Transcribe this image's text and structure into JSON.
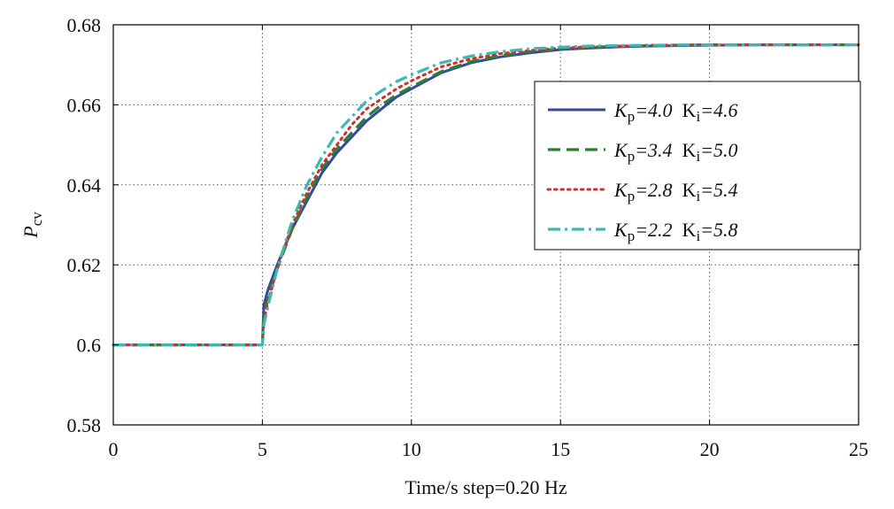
{
  "chart_data": {
    "type": "line",
    "xlabel": "Time/s  step=0.20 Hz",
    "ylabel": {
      "main": "P",
      "sub": "cv"
    },
    "xlim": [
      0,
      25
    ],
    "ylim": [
      0.58,
      0.68
    ],
    "xticks": [
      0,
      5,
      10,
      15,
      20,
      25
    ],
    "xtick_labels": [
      "0",
      "5",
      "10",
      "15",
      "20",
      "25"
    ],
    "yticks": [
      0.58,
      0.6,
      0.62,
      0.64,
      0.66,
      0.68
    ],
    "ytick_labels": [
      "0.58",
      "0.6",
      "0.62",
      "0.64",
      "0.66",
      "0.68"
    ],
    "grid": true,
    "legend_position": "right",
    "series": [
      {
        "label": {
          "kp": "4.0",
          "ki": "4.6"
        },
        "color": "#2f4aa0",
        "dash": "solid",
        "x": [
          0,
          4.95,
          5.0,
          5.05,
          5.2,
          5.5,
          6,
          6.5,
          7,
          7.5,
          8,
          8.5,
          9,
          9.5,
          10,
          11,
          12,
          13,
          14,
          15,
          16,
          17,
          18,
          20,
          22,
          25
        ],
        "y": [
          0.6,
          0.6,
          0.6,
          0.61,
          0.614,
          0.62,
          0.629,
          0.636,
          0.643,
          0.648,
          0.652,
          0.656,
          0.659,
          0.662,
          0.664,
          0.668,
          0.6705,
          0.672,
          0.673,
          0.6738,
          0.6742,
          0.6745,
          0.6747,
          0.6749,
          0.675,
          0.675
        ]
      },
      {
        "label": {
          "kp": "3.4",
          "ki": "5.0"
        },
        "color": "#2e7d32",
        "dash": "dashed",
        "x": [
          0,
          4.95,
          5.0,
          5.05,
          5.2,
          5.5,
          6,
          6.5,
          7,
          7.5,
          8,
          8.5,
          9,
          9.5,
          10,
          11,
          12,
          13,
          14,
          15,
          16,
          17,
          18,
          20,
          22,
          25
        ],
        "y": [
          0.6,
          0.6,
          0.6,
          0.607,
          0.612,
          0.619,
          0.629,
          0.637,
          0.644,
          0.649,
          0.653,
          0.657,
          0.66,
          0.6625,
          0.6645,
          0.6683,
          0.6708,
          0.6723,
          0.6733,
          0.674,
          0.6744,
          0.6746,
          0.6748,
          0.675,
          0.675,
          0.675
        ]
      },
      {
        "label": {
          "kp": "2.8",
          "ki": "5.4"
        },
        "color": "#d32f2f",
        "dash": "dotted",
        "x": [
          0,
          4.95,
          5.0,
          5.05,
          5.2,
          5.5,
          6,
          6.5,
          7,
          7.5,
          8,
          8.5,
          9,
          9.5,
          10,
          11,
          12,
          13,
          14,
          15,
          16,
          17,
          18,
          20,
          22,
          25
        ],
        "y": [
          0.6,
          0.6,
          0.6,
          0.606,
          0.611,
          0.619,
          0.63,
          0.638,
          0.645,
          0.65,
          0.655,
          0.659,
          0.6615,
          0.664,
          0.666,
          0.6695,
          0.6715,
          0.6728,
          0.6736,
          0.6742,
          0.6745,
          0.6747,
          0.6749,
          0.675,
          0.675,
          0.675
        ]
      },
      {
        "label": {
          "kp": "2.2",
          "ki": "5.8"
        },
        "color": "#3cb8b0",
        "dash": "dashdot",
        "x": [
          0,
          4.95,
          5.0,
          5.05,
          5.2,
          5.5,
          6,
          6.5,
          7,
          7.5,
          8,
          8.5,
          9,
          9.5,
          10,
          11,
          12,
          13,
          14,
          15,
          16,
          17,
          18,
          20,
          22,
          25
        ],
        "y": [
          0.6,
          0.6,
          0.6,
          0.605,
          0.61,
          0.619,
          0.631,
          0.64,
          0.647,
          0.653,
          0.657,
          0.661,
          0.6635,
          0.6658,
          0.6675,
          0.6705,
          0.6722,
          0.6733,
          0.674,
          0.6744,
          0.6747,
          0.6748,
          0.6749,
          0.675,
          0.675,
          0.675
        ]
      }
    ]
  }
}
